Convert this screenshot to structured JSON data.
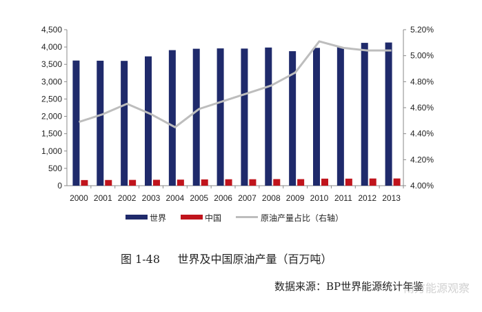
{
  "chart_data": {
    "type": "bar",
    "categories": [
      "2000",
      "2001",
      "2002",
      "2003",
      "2004",
      "2005",
      "2006",
      "2007",
      "2008",
      "2009",
      "2010",
      "2011",
      "2012",
      "2013"
    ],
    "series": [
      {
        "name": "世界",
        "type": "bar",
        "axis": "left",
        "color": "#1f2a6b",
        "values": [
          3610,
          3605,
          3600,
          3730,
          3910,
          3950,
          3960,
          3955,
          3985,
          3880,
          3975,
          3995,
          4120,
          4130
        ]
      },
      {
        "name": "中国",
        "type": "bar",
        "axis": "left",
        "color": "#c0141c",
        "values": [
          162,
          164,
          167,
          170,
          175,
          181,
          185,
          186,
          190,
          189,
          203,
          203,
          207,
          208
        ]
      },
      {
        "name": "原油产量占比（右轴）",
        "type": "line",
        "axis": "right",
        "color": "#bdbdbd",
        "values": [
          4.49,
          4.55,
          4.63,
          4.55,
          4.45,
          4.59,
          4.65,
          4.71,
          4.77,
          4.87,
          5.11,
          5.06,
          5.04,
          5.04
        ]
      }
    ],
    "y_left": {
      "lim": [
        0,
        4500
      ],
      "ticks": [
        "0",
        "500",
        "1,000",
        "1,500",
        "2,000",
        "2,500",
        "3,000",
        "3,500",
        "4,000",
        "4,500"
      ]
    },
    "y_right": {
      "lim": [
        4.0,
        5.2
      ],
      "ticks": [
        "4.00%",
        "4.20%",
        "4.40%",
        "4.60%",
        "4.80%",
        "5.00%",
        "5.20%"
      ]
    },
    "grid": false,
    "legend_position": "bottom"
  },
  "legend": {
    "world": "世界",
    "china": "中国",
    "share": "原油产量占比（右轴）"
  },
  "caption": "图 1-48     世界及中国原油产量（百万吨）",
  "source": "数据来源：BP世界能源统计年鉴",
  "watermark": "南方能源观察"
}
